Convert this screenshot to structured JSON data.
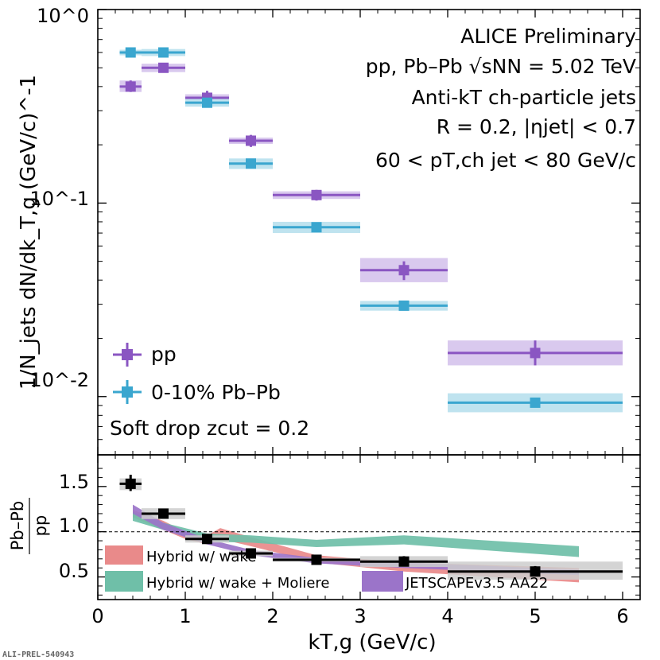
{
  "chart_data": [
    {
      "type": "scatter",
      "name": "spectrum",
      "yscale": "log",
      "ylim": [
        0.005,
        1.0
      ],
      "xlim": [
        0,
        6.2
      ],
      "ylabel": "1/N_jets dN/dk_T,g (GeV/c)^-1",
      "yticklabels": [
        "10^0",
        "10^-1",
        "10^-2"
      ],
      "annotations": {
        "line1": "ALICE Preliminary",
        "line2": "pp, Pb–Pb √sNN = 5.02 TeV",
        "line3": "Anti-kT ch-particle jets",
        "line4": "R = 0.2, |ηjet| < 0.7",
        "line5": "60 < pT,ch jet < 80 GeV/c",
        "softdrop": "Soft drop zcut = 0.2"
      },
      "legend": {
        "placement": "bottom-left",
        "pp": "pp",
        "pbpb": "0-10% Pb–Pb"
      },
      "series": [
        {
          "name": "pp",
          "color": "#8a56c2",
          "sysColor": "#d9c9ee",
          "points": [
            {
              "x": 0.375,
              "xlo": 0.25,
              "xhi": 0.5,
              "y": 0.4,
              "ylo": 0.375,
              "yhi": 0.43,
              "slo": 0.375,
              "shi": 0.43
            },
            {
              "x": 0.75,
              "xlo": 0.5,
              "xhi": 1.0,
              "y": 0.5,
              "ylo": 0.485,
              "yhi": 0.52,
              "slo": 0.475,
              "shi": 0.525
            },
            {
              "x": 1.25,
              "xlo": 1.0,
              "xhi": 1.5,
              "y": 0.35,
              "ylo": 0.33,
              "yhi": 0.38,
              "slo": 0.34,
              "shi": 0.365
            },
            {
              "x": 1.75,
              "xlo": 1.5,
              "xhi": 2.0,
              "y": 0.21,
              "ylo": 0.195,
              "yhi": 0.225,
              "slo": 0.202,
              "shi": 0.218
            },
            {
              "x": 2.5,
              "xlo": 2.0,
              "xhi": 3.0,
              "y": 0.11,
              "ylo": 0.103,
              "yhi": 0.117,
              "slo": 0.105,
              "shi": 0.115
            },
            {
              "x": 3.5,
              "xlo": 3.0,
              "xhi": 4.0,
              "y": 0.045,
              "ylo": 0.04,
              "yhi": 0.05,
              "slo": 0.039,
              "shi": 0.052
            },
            {
              "x": 5.0,
              "xlo": 4.0,
              "xhi": 6.0,
              "y": 0.0168,
              "ylo": 0.0145,
              "yhi": 0.0195,
              "slo": 0.0145,
              "shi": 0.0195
            }
          ]
        },
        {
          "name": "0-10% Pb–Pb",
          "color": "#3aa6cf",
          "sysColor": "#bfe3ef",
          "points": [
            {
              "x": 0.375,
              "xlo": 0.25,
              "xhi": 0.5,
              "y": 0.6,
              "ylo": 0.59,
              "yhi": 0.61,
              "slo": 0.58,
              "shi": 0.62
            },
            {
              "x": 0.75,
              "xlo": 0.5,
              "xhi": 1.0,
              "y": 0.6,
              "ylo": 0.59,
              "yhi": 0.61,
              "slo": 0.575,
              "shi": 0.625
            },
            {
              "x": 1.25,
              "xlo": 1.0,
              "xhi": 1.5,
              "y": 0.33,
              "ylo": 0.32,
              "yhi": 0.34,
              "slo": 0.315,
              "shi": 0.345
            },
            {
              "x": 1.75,
              "xlo": 1.5,
              "xhi": 2.0,
              "y": 0.16,
              "ylo": 0.155,
              "yhi": 0.165,
              "slo": 0.15,
              "shi": 0.17
            },
            {
              "x": 2.5,
              "xlo": 2.0,
              "xhi": 3.0,
              "y": 0.075,
              "ylo": 0.073,
              "yhi": 0.077,
              "slo": 0.07,
              "shi": 0.08
            },
            {
              "x": 3.5,
              "xlo": 3.0,
              "xhi": 4.0,
              "y": 0.0295,
              "ylo": 0.0288,
              "yhi": 0.0302,
              "slo": 0.0278,
              "shi": 0.0312
            },
            {
              "x": 5.0,
              "xlo": 4.0,
              "xhi": 6.0,
              "y": 0.0093,
              "ylo": 0.0091,
              "yhi": 0.0095,
              "slo": 0.0083,
              "shi": 0.0104
            }
          ]
        }
      ]
    },
    {
      "type": "scatter",
      "name": "ratio",
      "xlabel": "kT,g (GeV/c)",
      "ylabel": "Pb–Pb / pp",
      "ylabel_num": "Pb–Pb",
      "ylabel_den": "pp",
      "xlim": [
        0,
        6.2
      ],
      "ylim": [
        0.25,
        1.85
      ],
      "xticks": [
        0,
        1,
        2,
        3,
        4,
        5,
        6
      ],
      "xticklabels": [
        "0",
        "1",
        "2",
        "3",
        "4",
        "5",
        "6"
      ],
      "yticks": [
        0.5,
        1.0,
        1.5
      ],
      "yticklabels": [
        "0.5",
        "1.0",
        "1.5"
      ],
      "reference_line": 1.0,
      "data": {
        "name": "ratio",
        "color": "#000000",
        "sysColor": "#cccccc",
        "points": [
          {
            "x": 0.375,
            "xlo": 0.25,
            "xhi": 0.5,
            "y": 1.53,
            "ylo": 1.45,
            "yhi": 1.63,
            "slo": 1.46,
            "shi": 1.59
          },
          {
            "x": 0.75,
            "xlo": 0.5,
            "xhi": 1.0,
            "y": 1.2,
            "ylo": 1.16,
            "yhi": 1.24,
            "slo": 1.14,
            "shi": 1.26
          },
          {
            "x": 1.25,
            "xlo": 1.0,
            "xhi": 1.5,
            "y": 0.92,
            "ylo": 0.89,
            "yhi": 0.95,
            "slo": 0.88,
            "shi": 0.96
          },
          {
            "x": 1.75,
            "xlo": 1.5,
            "xhi": 2.0,
            "y": 0.76,
            "ylo": 0.74,
            "yhi": 0.78,
            "slo": 0.73,
            "shi": 0.79
          },
          {
            "x": 2.5,
            "xlo": 2.0,
            "xhi": 3.0,
            "y": 0.69,
            "ylo": 0.67,
            "yhi": 0.71,
            "slo": 0.67,
            "shi": 0.71
          },
          {
            "x": 3.5,
            "xlo": 3.0,
            "xhi": 4.0,
            "y": 0.67,
            "ylo": 0.62,
            "yhi": 0.73,
            "slo": 0.61,
            "shi": 0.73
          },
          {
            "x": 5.0,
            "xlo": 4.0,
            "xhi": 6.0,
            "y": 0.56,
            "ylo": 0.51,
            "yhi": 0.62,
            "slo": 0.47,
            "shi": 0.67
          }
        ]
      },
      "models": [
        {
          "name": "Hybrid w/ wake",
          "color": "#e98a8a",
          "x": [
            0.4,
            0.75,
            1.0,
            1.25,
            1.4,
            1.75,
            2.5,
            3.5,
            5.5
          ],
          "lo": [
            1.16,
            1.02,
            0.92,
            0.86,
            0.92,
            0.84,
            0.66,
            0.56,
            0.44
          ],
          "hi": [
            1.24,
            1.12,
            1.0,
            0.96,
            1.04,
            0.94,
            0.74,
            0.66,
            0.6
          ]
        },
        {
          "name": "Hybrid w/ wake + Moliere",
          "color": "#6fbfa8",
          "x": [
            0.4,
            0.75,
            1.25,
            1.75,
            2.5,
            3.5,
            5.5
          ],
          "lo": [
            1.12,
            1.02,
            0.89,
            0.88,
            0.83,
            0.86,
            0.72
          ],
          "hi": [
            1.22,
            1.1,
            0.98,
            0.96,
            0.91,
            0.96,
            0.84
          ]
        },
        {
          "name": "JETSCAPEv3.5 AA22",
          "color": "#9b74c9",
          "x": [
            0.4,
            0.75,
            1.25,
            1.75,
            2.5,
            3.5,
            5.5
          ],
          "lo": [
            1.2,
            1.02,
            0.86,
            0.74,
            0.65,
            0.6,
            0.52
          ],
          "hi": [
            1.3,
            1.1,
            0.92,
            0.8,
            0.71,
            0.66,
            0.58
          ]
        }
      ]
    }
  ],
  "watermark": "ALI-PREL-540943"
}
